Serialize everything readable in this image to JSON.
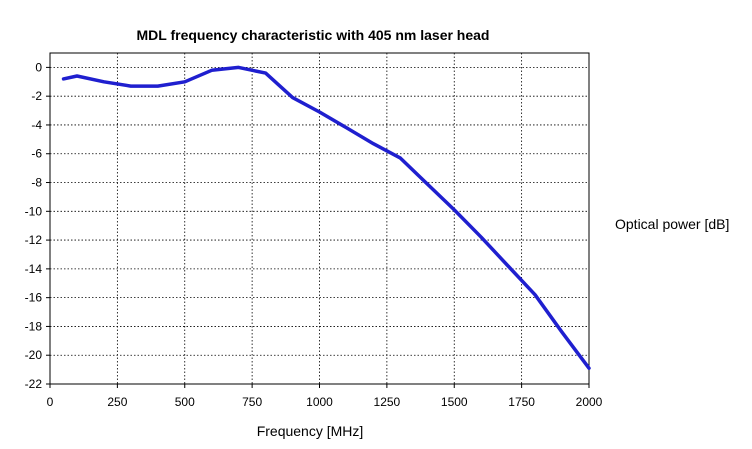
{
  "chart_data": {
    "type": "line",
    "title": "MDL frequency characteristic with 405 nm laser head",
    "xlabel": "Frequency [MHz]",
    "ylabel": "Optical power [dB]",
    "xlim": [
      0,
      2000
    ],
    "ylim": [
      -22,
      1
    ],
    "xticks": [
      0,
      250,
      500,
      750,
      1000,
      1250,
      1500,
      1750,
      2000
    ],
    "yticks": [
      0,
      -2,
      -4,
      -6,
      -8,
      -10,
      -12,
      -14,
      -16,
      -18,
      -20,
      -22
    ],
    "grid": true,
    "series_color": "#1f1fcf",
    "series": [
      {
        "x": [
          50,
          100,
          200,
          300,
          400,
          500,
          600,
          700,
          800,
          900,
          1000,
          1100,
          1200,
          1300,
          1400,
          1500,
          1600,
          1700,
          1800,
          1900,
          2000
        ],
        "y": [
          -0.8,
          -0.6,
          -1.0,
          -1.3,
          -1.3,
          -1.0,
          -0.2,
          0.0,
          -0.4,
          -2.1,
          -3.1,
          -4.2,
          -5.3,
          -6.3,
          -8.1,
          -9.9,
          -11.8,
          -13.8,
          -15.8,
          -18.4,
          -20.9
        ]
      }
    ]
  }
}
